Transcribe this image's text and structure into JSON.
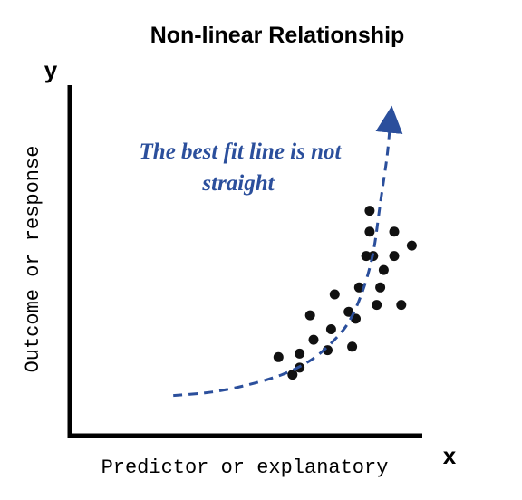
{
  "title": "Non-linear Relationship",
  "axes": {
    "y_letter": "y",
    "x_letter": "x",
    "y_label": "Outcome or response",
    "x_label": "Predictor or explanatory"
  },
  "annotation": {
    "line1": "The best fit line is not",
    "line2": "straight"
  },
  "colors": {
    "axis": "#000000",
    "points": "#111111",
    "curve": "#2b4f9c",
    "annotation": "#2b4f9c"
  },
  "chart_data": {
    "type": "scatter",
    "title": "Non-linear Relationship",
    "xlabel": "Predictor or explanatory",
    "ylabel": "Outcome or response",
    "xlim": [
      0,
      100
    ],
    "ylim": [
      0,
      100
    ],
    "grid": false,
    "points": [
      {
        "x": 59,
        "y": 22
      },
      {
        "x": 63,
        "y": 17
      },
      {
        "x": 65,
        "y": 19
      },
      {
        "x": 65,
        "y": 23
      },
      {
        "x": 68,
        "y": 34
      },
      {
        "x": 69,
        "y": 27
      },
      {
        "x": 73,
        "y": 24
      },
      {
        "x": 74,
        "y": 30
      },
      {
        "x": 75,
        "y": 40
      },
      {
        "x": 79,
        "y": 35
      },
      {
        "x": 80,
        "y": 25
      },
      {
        "x": 81,
        "y": 33
      },
      {
        "x": 82,
        "y": 42
      },
      {
        "x": 84,
        "y": 51
      },
      {
        "x": 85,
        "y": 58
      },
      {
        "x": 85,
        "y": 64
      },
      {
        "x": 86,
        "y": 51
      },
      {
        "x": 87,
        "y": 37
      },
      {
        "x": 88,
        "y": 42
      },
      {
        "x": 89,
        "y": 47
      },
      {
        "x": 92,
        "y": 58
      },
      {
        "x": 92,
        "y": 51
      },
      {
        "x": 94,
        "y": 37
      },
      {
        "x": 97,
        "y": 54
      }
    ],
    "trend_curve": [
      {
        "x": 29,
        "y": 11
      },
      {
        "x": 40,
        "y": 12
      },
      {
        "x": 50,
        "y": 14
      },
      {
        "x": 60,
        "y": 17
      },
      {
        "x": 68,
        "y": 21
      },
      {
        "x": 74,
        "y": 26
      },
      {
        "x": 79,
        "y": 32
      },
      {
        "x": 83,
        "y": 41
      },
      {
        "x": 86,
        "y": 52
      },
      {
        "x": 88,
        "y": 66
      },
      {
        "x": 90,
        "y": 80
      },
      {
        "x": 91,
        "y": 91
      }
    ],
    "trend_style": "dashed-with-arrow"
  }
}
